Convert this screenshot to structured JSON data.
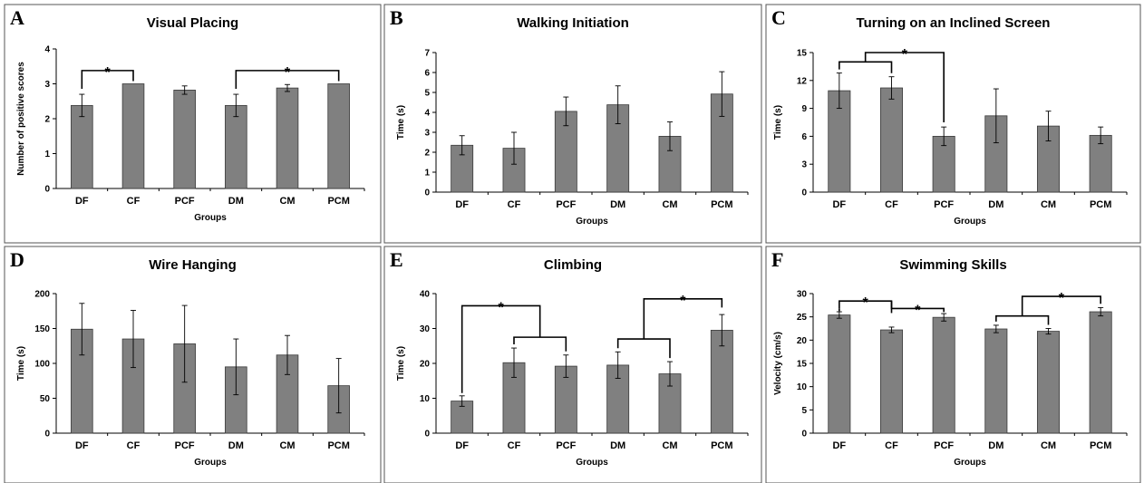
{
  "chart_data": [
    {
      "type": "bar",
      "letter": "A",
      "title": "Visual Placing",
      "categories": [
        "DF",
        "CF",
        "PCF",
        "DM",
        "CM",
        "PCM"
      ],
      "values": [
        2.38,
        3.0,
        2.82,
        2.38,
        2.88,
        3.0
      ],
      "errors": [
        0.32,
        0,
        0.12,
        0.32,
        0.1,
        0
      ],
      "ylim": [
        0,
        4
      ],
      "yticks": [
        0,
        1,
        2,
        3,
        4
      ],
      "ylabel": "Number of positive scores",
      "xlabel": "Groups",
      "significance": [
        {
          "type": "simple",
          "from": 0,
          "to": 1,
          "level": 3.38,
          "label": "*"
        },
        {
          "type": "simple",
          "from": 3,
          "to": 5,
          "level": 3.38,
          "label": "*"
        }
      ]
    },
    {
      "type": "bar",
      "letter": "B",
      "title": "Walking Initiation",
      "categories": [
        "DF",
        "CF",
        "PCF",
        "DM",
        "CM",
        "PCM"
      ],
      "values": [
        2.35,
        2.2,
        4.05,
        4.38,
        2.8,
        4.92
      ],
      "errors": [
        0.48,
        0.8,
        0.72,
        0.95,
        0.72,
        1.12
      ],
      "ylim": [
        0,
        7
      ],
      "yticks": [
        0,
        1,
        2,
        3,
        4,
        5,
        6,
        7
      ],
      "ylabel": "Time (s)",
      "xlabel": "Groups",
      "significance": []
    },
    {
      "type": "bar",
      "letter": "C",
      "title": "Turning on an Inclined Screen",
      "categories": [
        "DF",
        "CF",
        "PCF",
        "DM",
        "CM",
        "PCM"
      ],
      "values": [
        10.9,
        11.2,
        6.0,
        8.2,
        7.1,
        6.1
      ],
      "errors": [
        1.9,
        1.2,
        1.0,
        2.9,
        1.6,
        0.9
      ],
      "ylim": [
        0,
        15
      ],
      "yticks": [
        0,
        3,
        6,
        9,
        12,
        15
      ],
      "ylabel": "Time (s)",
      "xlabel": "Groups",
      "significance": [
        {
          "type": "nested",
          "groupFrom": 0,
          "groupTo": 1,
          "inner": 14.0,
          "outer": 15.0,
          "target": 2,
          "targetLevel": 7.5,
          "label": "*"
        }
      ]
    },
    {
      "type": "bar",
      "letter": "D",
      "title": "Wire Hanging",
      "categories": [
        "DF",
        "CF",
        "PCF",
        "DM",
        "CM",
        "PCM"
      ],
      "values": [
        149,
        135,
        128,
        95,
        112,
        68
      ],
      "errors": [
        37,
        41,
        55,
        40,
        28,
        39
      ],
      "ylim": [
        0,
        200
      ],
      "yticks": [
        0,
        50,
        100,
        150,
        200
      ],
      "ylabel": "Time (s)",
      "xlabel": "Groups",
      "significance": []
    },
    {
      "type": "bar",
      "letter": "E",
      "title": "Climbing",
      "categories": [
        "DF",
        "CF",
        "PCF",
        "DM",
        "CM",
        "PCM"
      ],
      "values": [
        9.2,
        20.2,
        19.2,
        19.5,
        17.0,
        29.5
      ],
      "errors": [
        1.5,
        4.2,
        3.2,
        3.8,
        3.5,
        4.5
      ],
      "ylim": [
        0,
        40
      ],
      "yticks": [
        0,
        10,
        20,
        30,
        40
      ],
      "ylabel": "Time (s)",
      "xlabel": "Groups",
      "significance": [
        {
          "type": "nested",
          "groupFrom": 1,
          "groupTo": 2,
          "inner": 27.5,
          "outer": 36.5,
          "target": 0,
          "targetLevel": 11.5,
          "label": "*"
        },
        {
          "type": "nested",
          "groupFrom": 3,
          "groupTo": 4,
          "inner": 27.0,
          "outer": 38.5,
          "target": 5,
          "targetLevel": 36.0,
          "label": "*"
        }
      ]
    },
    {
      "type": "bar",
      "letter": "F",
      "title": "Swimming Skills",
      "categories": [
        "DF",
        "CF",
        "PCF",
        "DM",
        "CM",
        "PCM"
      ],
      "values": [
        25.4,
        22.2,
        24.9,
        22.4,
        21.9,
        26.1
      ],
      "errors": [
        0.7,
        0.6,
        0.8,
        0.8,
        0.6,
        0.9
      ],
      "ylim": [
        0,
        30
      ],
      "yticks": [
        0,
        5,
        10,
        15,
        20,
        25,
        30
      ],
      "ylabel": "Velocity  (cm/s)",
      "xlabel": "Groups",
      "significance": [
        {
          "type": "step",
          "points": [
            0,
            1,
            2
          ],
          "levels": [
            26.8,
            28.4,
            26.8,
            26.8
          ],
          "labels": [
            "*",
            "*"
          ]
        },
        {
          "type": "nested",
          "groupFrom": 3,
          "groupTo": 4,
          "inner": 25.2,
          "outer": 29.4,
          "target": 5,
          "targetLevel": 27.8,
          "label": "*"
        }
      ]
    }
  ]
}
